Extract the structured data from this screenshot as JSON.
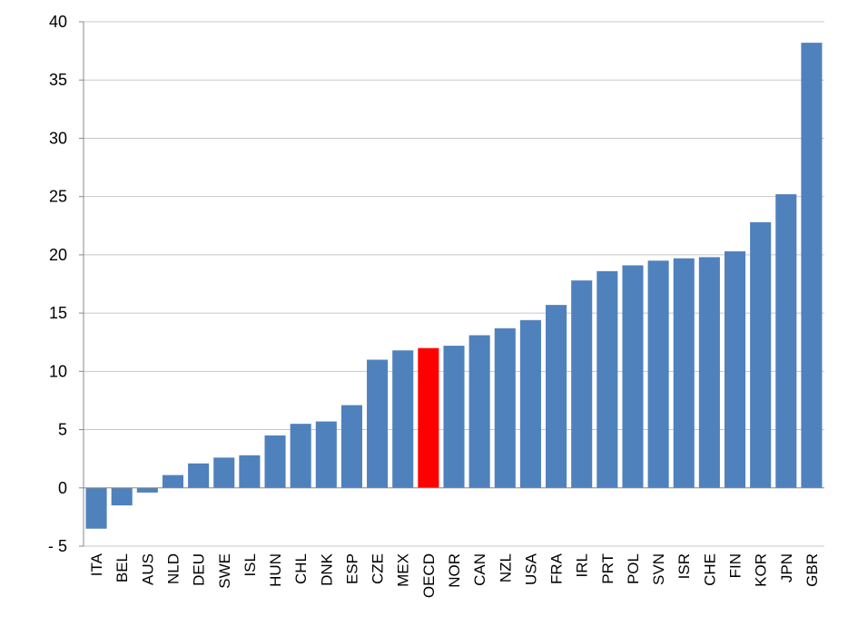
{
  "chart_data": {
    "type": "bar",
    "title": "",
    "xlabel": "",
    "ylabel": "",
    "ylim": [
      -5,
      40
    ],
    "yticks": [
      40,
      35,
      30,
      25,
      20,
      15,
      10,
      5,
      0,
      -5
    ],
    "ytick_labels": [
      "40",
      "35",
      "30",
      "25",
      "20",
      "15",
      "10",
      "5",
      "0",
      "- 5"
    ],
    "grid": true,
    "legend": "none",
    "bar_color": "#4F81BD",
    "highlight_color": "#FF0000",
    "highlight_category": "OECD",
    "categories": [
      "ITA",
      "BEL",
      "AUS",
      "NLD",
      "DEU",
      "SWE",
      "ISL",
      "HUN",
      "CHL",
      "DNK",
      "ESP",
      "CZE",
      "MEX",
      "OECD",
      "NOR",
      "CAN",
      "NZL",
      "USA",
      "FRA",
      "IRL",
      "PRT",
      "POL",
      "SVN",
      "ISR",
      "CHE",
      "FIN",
      "KOR",
      "JPN",
      "GBR"
    ],
    "values": [
      -3.5,
      -1.5,
      -0.4,
      1.1,
      2.1,
      2.6,
      2.8,
      4.5,
      5.5,
      5.7,
      7.1,
      11.0,
      11.8,
      12.0,
      12.2,
      13.1,
      13.7,
      14.4,
      15.7,
      17.8,
      18.6,
      19.1,
      19.5,
      19.7,
      19.8,
      20.3,
      22.8,
      25.2,
      38.2
    ]
  }
}
